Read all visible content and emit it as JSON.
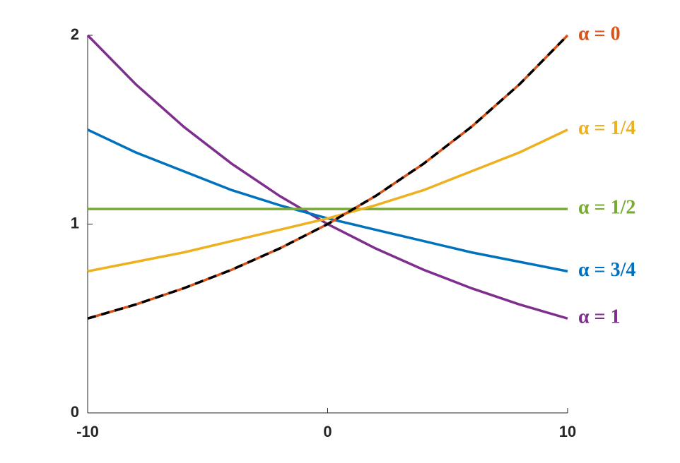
{
  "chart_data": {
    "type": "line",
    "x": [
      -10,
      -8,
      -6,
      -4,
      -2,
      0,
      2,
      4,
      6,
      8,
      10
    ],
    "series": [
      {
        "name": "α = 1",
        "color": "#7E2F8E",
        "values": [
          2,
          1.741,
          1.516,
          1.32,
          1.149,
          1,
          0.871,
          0.758,
          0.66,
          0.574,
          0.5
        ]
      },
      {
        "name": "α = 3/4",
        "color": "#0072BD",
        "values": [
          1.5,
          1.38,
          1.28,
          1.18,
          1.1,
          1.03,
          0.97,
          0.91,
          0.85,
          0.8,
          0.75
        ]
      },
      {
        "name": "α = 1/2",
        "color": "#77AC30",
        "values": [
          1.08,
          1.08,
          1.08,
          1.08,
          1.08,
          1.08,
          1.08,
          1.08,
          1.08,
          1.08,
          1.08
        ]
      },
      {
        "name": "α = 1/4",
        "color": "#EDB120",
        "values": [
          0.75,
          0.8,
          0.85,
          0.91,
          0.97,
          1.03,
          1.1,
          1.18,
          1.28,
          1.38,
          1.5
        ]
      },
      {
        "name": "α = 0",
        "color": "#D95319",
        "values": [
          0.5,
          0.574,
          0.66,
          0.758,
          0.871,
          1,
          1.149,
          1.32,
          1.516,
          1.741,
          2
        ]
      },
      {
        "color": "#000000",
        "dashed": true,
        "values": [
          0.5,
          0.574,
          0.66,
          0.758,
          0.871,
          1,
          1.149,
          1.32,
          1.516,
          1.741,
          2
        ]
      }
    ],
    "xlim": [
      -10,
      10
    ],
    "xticks": [
      -10,
      0,
      10
    ],
    "ylim": [
      0,
      2
    ],
    "yticks": [
      0,
      1,
      2
    ]
  }
}
